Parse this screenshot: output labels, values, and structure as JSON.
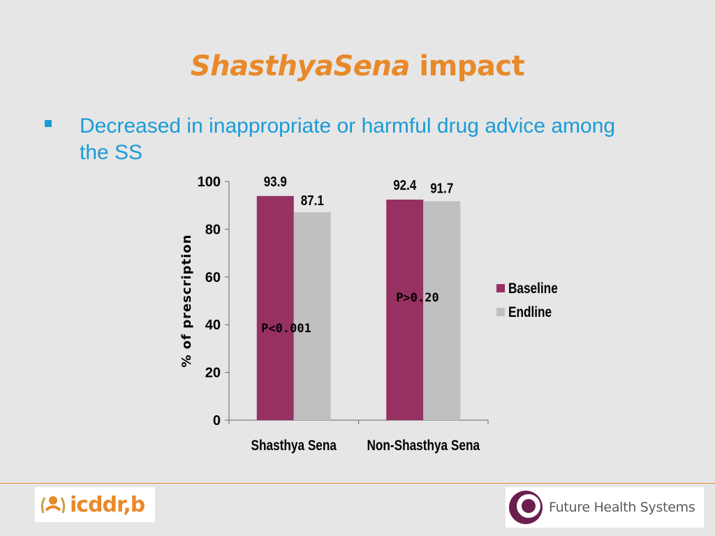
{
  "slide": {
    "title_italic": "ShasthyaSena",
    "title_rest": " impact",
    "bullet_text": "Decreased in inappropriate or harmful drug advice among the SS"
  },
  "colors": {
    "title": "#e8892a",
    "bullet": "#1a9bd7",
    "baseline": "#963162",
    "endline": "#c0c0c0"
  },
  "chart_data": {
    "type": "bar",
    "categories": [
      "Shasthya Sena",
      "Non-Shasthya Sena"
    ],
    "series": [
      {
        "name": "Baseline",
        "values": [
          93.9,
          92.4
        ]
      },
      {
        "name": "Endline",
        "values": [
          87.1,
          91.7
        ]
      }
    ],
    "data_labels": [
      [
        "93.9",
        "92.4"
      ],
      [
        "87.1",
        "91.7"
      ]
    ],
    "annotations": [
      "P<0.001",
      "P>0.20"
    ],
    "ylabel": "% of prescription",
    "ylim": [
      0,
      100
    ],
    "yticks": [
      0,
      20,
      40,
      60,
      80,
      100
    ],
    "grid": false,
    "legend": "right"
  },
  "logos": {
    "left_text": "icddr,b",
    "right_text": "Future Health Systems"
  }
}
